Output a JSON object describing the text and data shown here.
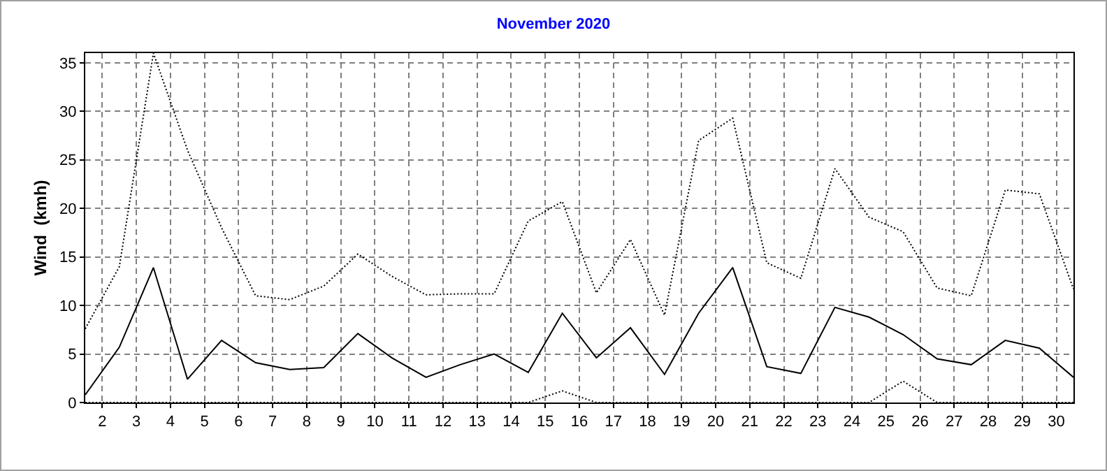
{
  "chart_data": {
    "type": "line",
    "title": "November 2020",
    "ylabel": "Wind  (kmh)",
    "x": [
      1.5,
      2.5,
      3.5,
      4.5,
      5.5,
      6.5,
      7.5,
      8.5,
      9.5,
      10.5,
      11.5,
      12.5,
      13.5,
      14.5,
      15.5,
      16.5,
      17.5,
      18.5,
      19.5,
      20.5,
      21.5,
      22.5,
      23.5,
      24.5,
      25.5,
      26.5,
      27.5,
      28.5,
      29.5,
      30.5
    ],
    "series": [
      {
        "color": "#000000",
        "line_style": "dotted",
        "values": [
          7.6,
          14.0,
          36.0,
          26.0,
          18.0,
          11.0,
          10.6,
          12.0,
          15.3,
          13.0,
          11.1,
          11.2,
          11.2,
          18.7,
          20.7,
          11.3,
          16.8,
          9.0,
          27.0,
          29.3,
          14.4,
          12.8,
          24.1,
          19.1,
          17.6,
          11.8,
          11.0,
          21.9,
          21.5,
          11.7
        ]
      },
      {
        "color": "#000000",
        "line_style": "solid",
        "values": [
          0.8,
          5.7,
          13.9,
          2.4,
          6.4,
          4.1,
          3.4,
          3.6,
          7.1,
          4.6,
          2.6,
          3.9,
          5.0,
          3.1,
          9.2,
          4.6,
          7.7,
          2.9,
          9.2,
          13.9,
          3.7,
          3.0,
          9.8,
          8.8,
          7.0,
          4.5,
          3.9,
          6.4,
          5.6,
          2.6
        ]
      },
      {
        "color": "#000000",
        "line_style": "dotted",
        "values": [
          0,
          0,
          0,
          0,
          0,
          0,
          0,
          0,
          0,
          0,
          0,
          0,
          0,
          0,
          1.2,
          0,
          0,
          0,
          0,
          0,
          0,
          0,
          0,
          0,
          2.2,
          0,
          0,
          0,
          0,
          0
        ]
      }
    ],
    "xlim": [
      1.5,
      30.5
    ],
    "xticks": [
      2,
      3,
      4,
      5,
      6,
      7,
      8,
      9,
      10,
      11,
      12,
      13,
      14,
      15,
      16,
      17,
      18,
      19,
      20,
      21,
      22,
      23,
      24,
      25,
      26,
      27,
      28,
      29,
      30
    ],
    "ylim": [
      0,
      36
    ],
    "yticks": [
      0,
      5,
      10,
      15,
      20,
      25,
      30,
      35
    ],
    "grid": true,
    "marker": "none"
  }
}
